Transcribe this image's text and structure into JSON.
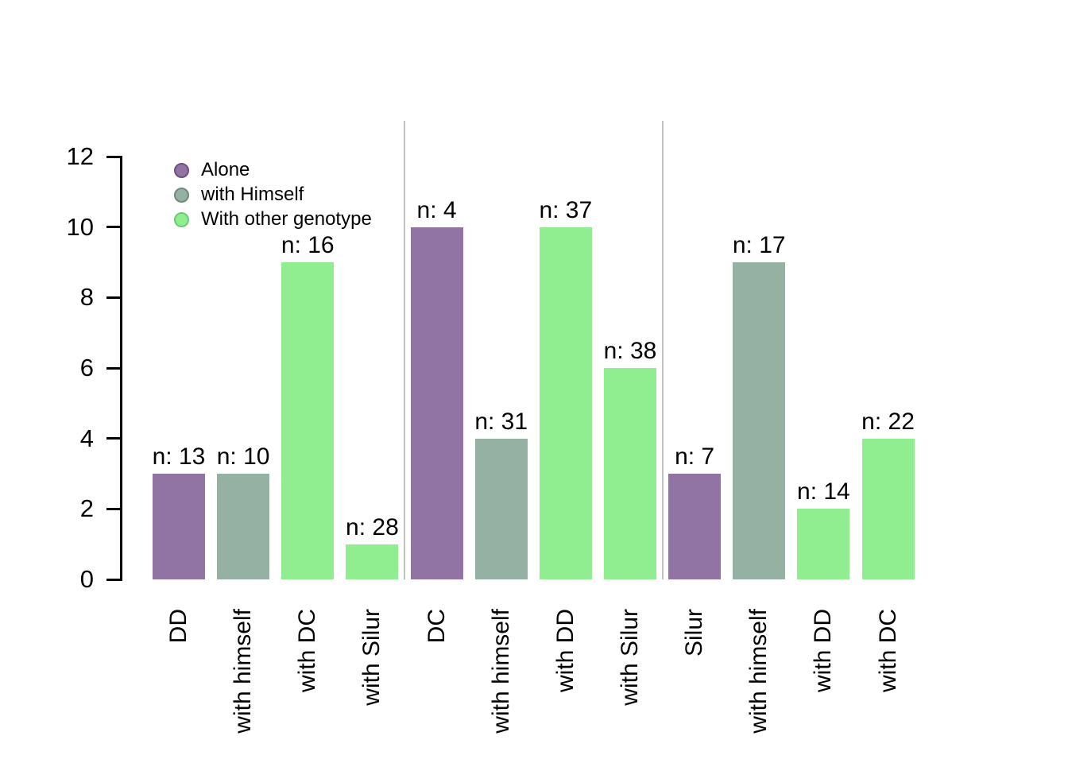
{
  "chart_data": {
    "type": "bar",
    "title": "",
    "xlabel": "",
    "ylabel": "",
    "ylim": [
      0,
      12
    ],
    "yticks": [
      0,
      2,
      4,
      6,
      8,
      10,
      12
    ],
    "grid": false,
    "legend_position": "top-left",
    "legend": [
      {
        "label": "Alone",
        "fill": "#9173A4",
        "border": "#6B5280"
      },
      {
        "label": "with Himself",
        "fill": "#95B1A3",
        "border": "#70897B"
      },
      {
        "label": "With other genotype",
        "fill": "#90EE90",
        "border": "#67CE73"
      }
    ],
    "groups": [
      {
        "bars": [
          {
            "label": "DD",
            "series": "Alone",
            "value": 3,
            "count_label": "n: 13"
          },
          {
            "label": "with himself",
            "series": "with Himself",
            "value": 3,
            "count_label": "n: 10"
          },
          {
            "label": "with DC",
            "series": "With other genotype",
            "value": 9,
            "count_label": "n: 16"
          },
          {
            "label": "with Silur",
            "series": "With other genotype",
            "value": 1,
            "count_label": "n: 28"
          }
        ]
      },
      {
        "bars": [
          {
            "label": "DC",
            "series": "Alone",
            "value": 10,
            "count_label": "n: 4"
          },
          {
            "label": "with himself",
            "series": "with Himself",
            "value": 4,
            "count_label": "n: 31"
          },
          {
            "label": "with DD",
            "series": "With other genotype",
            "value": 10,
            "count_label": "n: 37"
          },
          {
            "label": "with Silur",
            "series": "With other genotype",
            "value": 6,
            "count_label": "n: 38"
          }
        ]
      },
      {
        "bars": [
          {
            "label": "Silur",
            "series": "Alone",
            "value": 3,
            "count_label": "n: 7"
          },
          {
            "label": "with himself",
            "series": "with Himself",
            "value": 9,
            "count_label": "n: 17"
          },
          {
            "label": "with DD",
            "series": "With other genotype",
            "value": 2,
            "count_label": "n: 14"
          },
          {
            "label": "with DC",
            "series": "With other genotype",
            "value": 4,
            "count_label": "n: 22"
          }
        ]
      }
    ]
  }
}
